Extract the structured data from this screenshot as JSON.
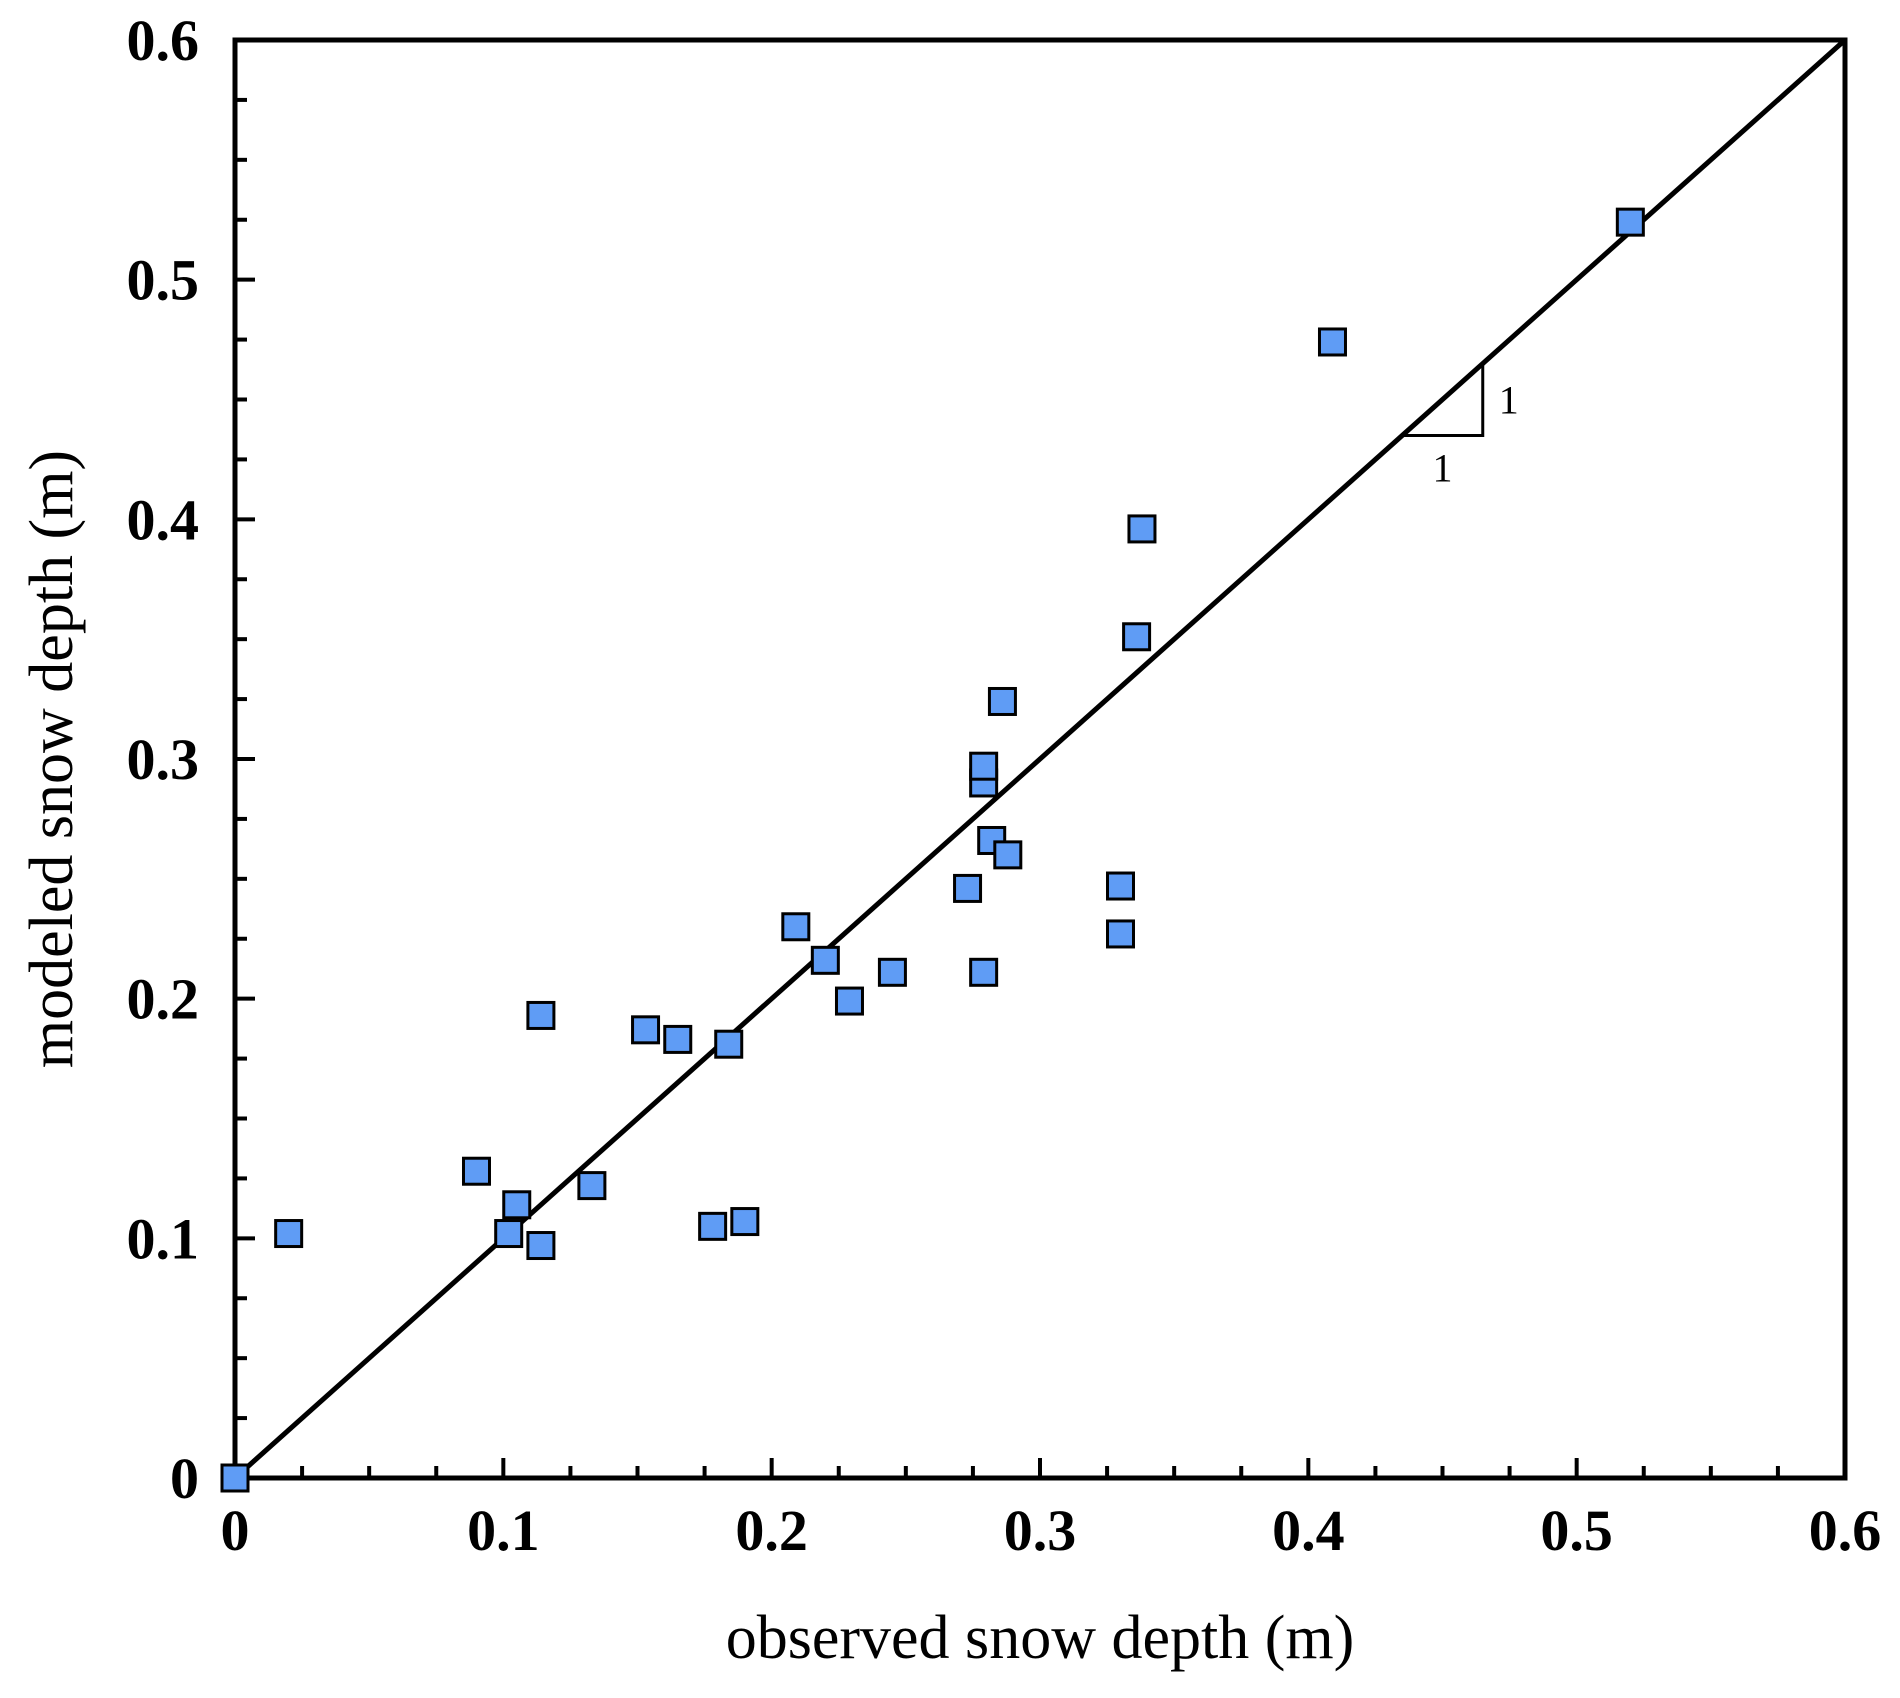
{
  "chart_data": {
    "type": "scatter",
    "title": "",
    "xlabel": "observed snow depth (m)",
    "ylabel": "modeled snow depth (m)",
    "xlim": [
      0,
      0.6
    ],
    "ylim": [
      0,
      0.6
    ],
    "xticks": [
      "0",
      "0.1",
      "0.2",
      "0.3",
      "0.4",
      "0.5",
      "0.6"
    ],
    "yticks": [
      "0",
      "0.1",
      "0.2",
      "0.3",
      "0.4",
      "0.5",
      "0.6"
    ],
    "grid": false,
    "marker": "square",
    "marker_color": "#5f9cf5",
    "marker_edge_color": "#000000",
    "series": [
      {
        "name": "snow depth",
        "points": [
          {
            "x": 0.0,
            "y": 0.0
          },
          {
            "x": 0.02,
            "y": 0.102
          },
          {
            "x": 0.09,
            "y": 0.128
          },
          {
            "x": 0.102,
            "y": 0.102
          },
          {
            "x": 0.105,
            "y": 0.114
          },
          {
            "x": 0.114,
            "y": 0.097
          },
          {
            "x": 0.114,
            "y": 0.193
          },
          {
            "x": 0.133,
            "y": 0.122
          },
          {
            "x": 0.153,
            "y": 0.187
          },
          {
            "x": 0.165,
            "y": 0.183
          },
          {
            "x": 0.178,
            "y": 0.105
          },
          {
            "x": 0.184,
            "y": 0.181
          },
          {
            "x": 0.19,
            "y": 0.107
          },
          {
            "x": 0.209,
            "y": 0.23
          },
          {
            "x": 0.22,
            "y": 0.216
          },
          {
            "x": 0.229,
            "y": 0.199
          },
          {
            "x": 0.245,
            "y": 0.211
          },
          {
            "x": 0.273,
            "y": 0.246
          },
          {
            "x": 0.279,
            "y": 0.29
          },
          {
            "x": 0.279,
            "y": 0.297
          },
          {
            "x": 0.279,
            "y": 0.211
          },
          {
            "x": 0.282,
            "y": 0.266
          },
          {
            "x": 0.286,
            "y": 0.324
          },
          {
            "x": 0.288,
            "y": 0.26
          },
          {
            "x": 0.33,
            "y": 0.247
          },
          {
            "x": 0.33,
            "y": 0.227
          },
          {
            "x": 0.336,
            "y": 0.351
          },
          {
            "x": 0.338,
            "y": 0.396
          },
          {
            "x": 0.409,
            "y": 0.474
          },
          {
            "x": 0.52,
            "y": 0.524
          }
        ]
      }
    ],
    "reference_line": {
      "name": "1:1 line",
      "x": [
        0,
        0.6
      ],
      "y": [
        0,
        0.6
      ]
    },
    "annotations": {
      "slope_triangle": {
        "rise_label": "1",
        "run_label": "1",
        "x_start": 0.435,
        "x_end": 0.465,
        "y_base": 0.435,
        "y_top": 0.465
      }
    }
  }
}
